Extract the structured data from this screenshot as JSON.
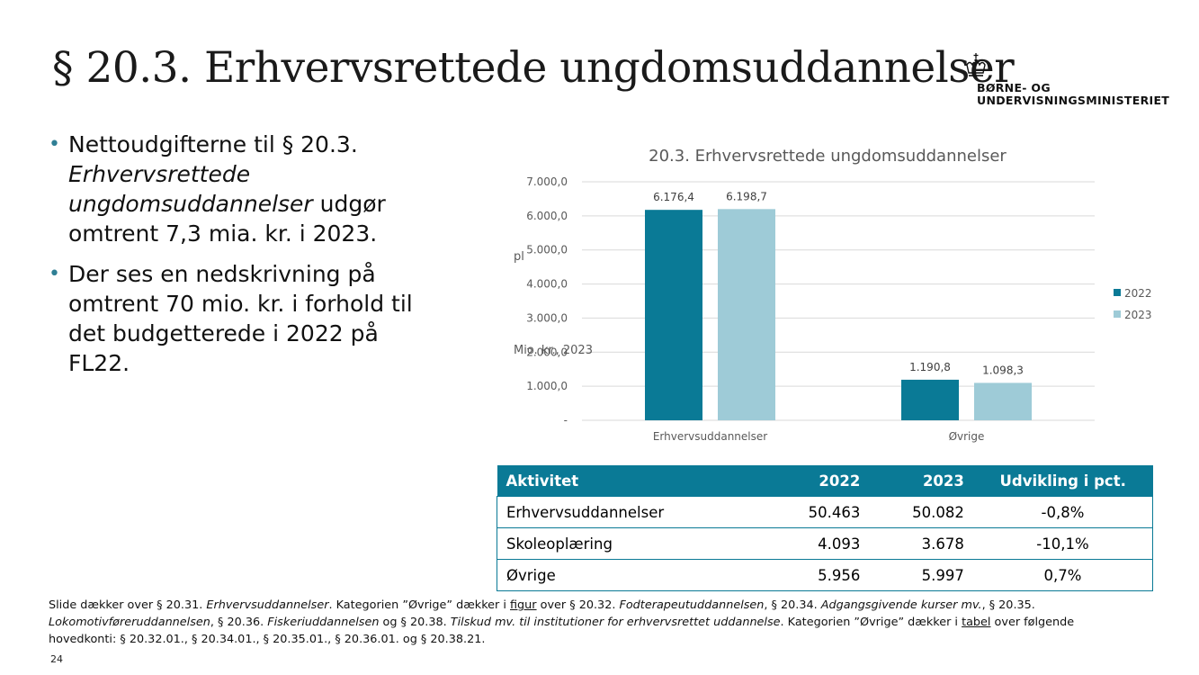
{
  "title": "§ 20.3. Erhvervsrettede ungdomsuddannelser",
  "logo": {
    "line1": "BØRNE- OG",
    "line2": "UNDERVISNINGSMINISTERIET"
  },
  "bullets": [
    {
      "pre": "Nettoudgifterne til § 20.3. ",
      "em": "Erhvervsrettede ungdomsuddannelser",
      "post": " udgør omtrent 7,3 mia. kr. i 2023."
    },
    {
      "text": "Der ses en nedskrivning på omtrent 70 mio. kr. i forhold til det budgetterede i 2022 på FL22."
    }
  ],
  "chart_data": {
    "type": "bar",
    "title": "20.3. Erhvervsrettede ungdomsuddannelser",
    "categories": [
      "Erhvervsuddannelser",
      "Øvrige"
    ],
    "series": [
      {
        "name": "2022",
        "values": [
          6176.4,
          1190.8
        ],
        "labels": [
          "6.176,4",
          "1.190,8"
        ],
        "color": "#0a7a96"
      },
      {
        "name": "2023",
        "values": [
          6198.7,
          1098.3
        ],
        "labels": [
          "6.198,7",
          "1.098,3"
        ],
        "color": "#9ecbd7"
      }
    ],
    "ylim": [
      0,
      7000
    ],
    "yticks": [
      0,
      1000,
      2000,
      3000,
      4000,
      5000,
      6000,
      7000
    ],
    "ytick_labels": [
      "-",
      "1.000,0",
      "2.000,0",
      "3.000,0",
      "4.000,0",
      "5.000,0",
      "6.000,0",
      "7.000,0"
    ],
    "ylabel_fragment": "pl",
    "ylabel": "Mio. kr., 2023",
    "grid": true,
    "legend": "right"
  },
  "table": {
    "headers": [
      "Aktivitet",
      "2022",
      "2023",
      "Udvikling i pct."
    ],
    "rows": [
      [
        "Erhvervsuddannelser",
        "50.463",
        "50.082",
        "-0,8%"
      ],
      [
        "Skoleoplæring",
        "4.093",
        "3.678",
        "-10,1%"
      ],
      [
        "Øvrige",
        "5.956",
        "5.997",
        "0,7%"
      ]
    ]
  },
  "footnote": {
    "p1": "Slide dækker over § 20.31. ",
    "i1": "Erhvervsuddannelser",
    "p2": ". Kategorien ”Øvrige” dækker i ",
    "u1": "figur",
    "p3": " over § 20.32. ",
    "i2": "Fodterapeutuddannelsen",
    "p4": ", § 20.34. ",
    "i3": "Adgangsgivende kurser mv.",
    "p5": ", § 20.35. ",
    "i4": "Lokomotivføreruddannelsen",
    "p6": ", § 20.36. ",
    "i5": "Fiskeriuddannelsen",
    "p7": " og § 20.38. ",
    "i6": "Tilskud mv. til institutioner for erhvervsrettet uddannelse",
    "p8": ". Kategorien ”Øvrige” dækker i ",
    "u2": "tabel",
    "p9": " over følgende hovedkonti: § 20.32.01., § 20.34.01., § 20.35.01., § 20.36.01. og § 20.38.21."
  },
  "page_number": "24"
}
